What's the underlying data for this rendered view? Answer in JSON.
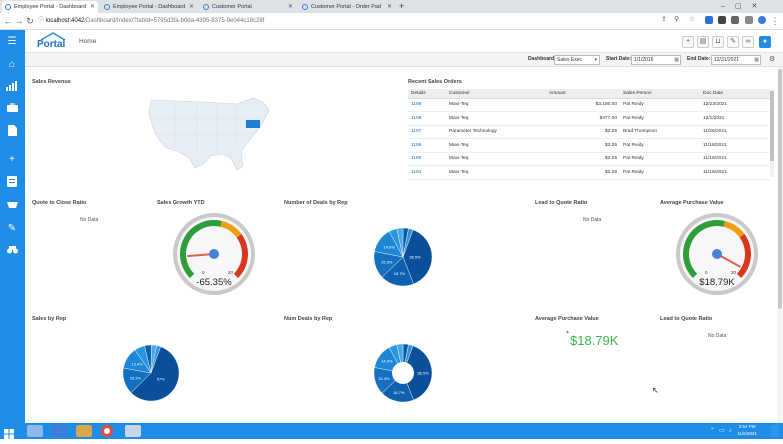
{
  "browser": {
    "tabs": [
      {
        "title": "Employee Portal - Dashboard",
        "active": true
      },
      {
        "title": "Employee Portal - Dashboard",
        "active": false
      },
      {
        "title": "Customer Portal",
        "active": false
      },
      {
        "title": "Customer Portal - Order Pad",
        "active": false
      }
    ],
    "new_tab": "+",
    "url_host": "localhost:4042",
    "url_path": "/Dashboard/Index/?tabId=5795d3fa-b0da-4395-8375-9e044c18c28f"
  },
  "header": {
    "logo_text": "Portal",
    "home_label": "Home"
  },
  "filters": {
    "dashboard_label": "Dashboard:",
    "dashboard_value": "Sales Exec",
    "start_label": "Start Date:",
    "start_value": "1/1/2016",
    "end_label": "End Date:",
    "end_value": "12/31/2021"
  },
  "widgets": {
    "sales_revenue": "Sales Revenue",
    "recent_orders": "Recent Sales Orders",
    "quote_to_close": "Quote to Close Ratio",
    "sales_growth": "Sales Growth YTD",
    "deals_by_rep": "Number of Deals by Rep",
    "lead_to_quote": "Lead to Quote Ratio",
    "avg_purchase": "Average Purchase Value",
    "sales_by_rep": "Sales by Rep",
    "num_deals_by_rep": "Num Deals by Rep",
    "avg_purchase_2": "Average Purchase Value",
    "lead_to_quote_2": "Lead to Quote Ratio",
    "no_data": "No Data"
  },
  "orders": {
    "columns": [
      "Details",
      "Customer",
      "Amount",
      "Sales Person",
      "Doc Date"
    ],
    "rows": [
      [
        "1198",
        "Maxi-Teq",
        "$3,180.00",
        "Pat Reidy",
        "12/23/2021"
      ],
      [
        "1198",
        "Maxi-Teq",
        "$477.00",
        "Pat Reidy",
        "12/1/2021"
      ],
      [
        "1197",
        "Parameter Technology",
        "$2.25",
        "Brad Thompson",
        "11/26/2021"
      ],
      [
        "1196",
        "Maxi-Teq",
        "$2.25",
        "Pat Reidy",
        "11/18/2021"
      ],
      [
        "1195",
        "Maxi-Teq",
        "$2.25",
        "Pat Reidy",
        "11/18/2021"
      ],
      [
        "1194",
        "Maxi-Teq",
        "$2.25",
        "Pat Reidy",
        "11/18/2021"
      ]
    ]
  },
  "gauges": {
    "growth": {
      "value_text": "-65.35%",
      "scale_min": "0",
      "scale_max": "20",
      "fraction": 0.15
    },
    "purchase": {
      "value_text": "$18.79K",
      "scale_min": "0",
      "scale_max": "20",
      "fraction": 0.94
    }
  },
  "kpi": {
    "avg_purchase_value": "$18.79K",
    "trend": "up",
    "color": "#3cb54a"
  },
  "chart_data": [
    {
      "type": "pie",
      "name": "Number of Deals by Rep",
      "labels_shown": [
        "38.5%",
        "18.7%",
        "15.3%",
        "14.0%"
      ],
      "values": [
        38.5,
        18.7,
        15.3,
        14.0,
        4.5,
        3.5,
        3.0,
        2.5
      ],
      "colors": [
        "#0a4f9a",
        "#0e5fad",
        "#1570c2",
        "#1d86d6",
        "#2b96e0",
        "#4aa8e8",
        "#0b5aa8",
        "#3390da"
      ]
    },
    {
      "type": "pie",
      "name": "Sales by Rep",
      "labels_shown": [
        "57%",
        "15.3%",
        "12.4%"
      ],
      "values": [
        57,
        15.3,
        12.4,
        6,
        4,
        3,
        2.3
      ],
      "colors": [
        "#0a4f9a",
        "#1570c2",
        "#1d86d6",
        "#2b96e0",
        "#0e5fad",
        "#4aa8e8",
        "#3390da"
      ]
    },
    {
      "type": "pie",
      "name": "Num Deals by Rep",
      "donut": true,
      "labels_shown": [
        "38.5%",
        "18.7%",
        "15.3%",
        "14.0%"
      ],
      "values": [
        38.5,
        18.7,
        15.3,
        14.0,
        4.5,
        3.5,
        3.0,
        2.5
      ],
      "colors": [
        "#0a4f9a",
        "#0e5fad",
        "#1570c2",
        "#1d86d6",
        "#2b96e0",
        "#4aa8e8",
        "#0b5aa8",
        "#3390da"
      ]
    }
  ],
  "taskbar": {
    "time": "3:54 PM",
    "date": "11/6/2021"
  },
  "colors": {
    "brand": "#1f8ce6",
    "gauge_green": "#2e9e3a",
    "gauge_orange": "#f39c12",
    "gauge_red": "#d9381e",
    "map_highlight": "#1f7fd6"
  }
}
